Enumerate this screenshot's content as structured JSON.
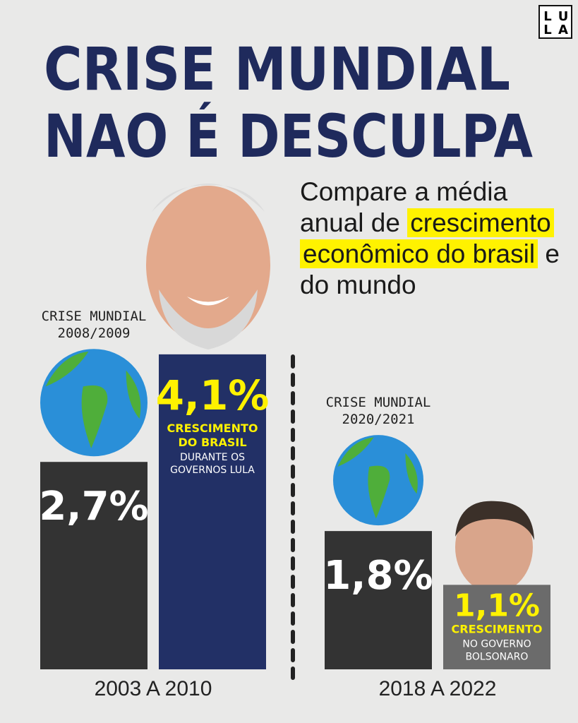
{
  "logo": [
    "L",
    "U",
    "L",
    "A"
  ],
  "chart_data": {
    "type": "bar",
    "title": [
      "CRISE MUNDIAL",
      "NAO É DESCULPA"
    ],
    "subtitle": {
      "before": "Compare a média anual de",
      "highlight": "crescimento econômico do brasil",
      "after": "e do mundo"
    },
    "categories": [
      "2003 A 2010",
      "2018 A 2022"
    ],
    "crisis_labels": [
      [
        "CRISE MUNDIAL",
        "2008/2009"
      ],
      [
        "CRISE MUNDIAL",
        "2020/2021"
      ]
    ],
    "ylim": [
      0,
      4.2
    ],
    "series": [
      {
        "color": "#333333",
        "values": [
          2.7,
          1.8
        ],
        "value_labels": [
          "2,7%",
          "1,8%"
        ]
      },
      {
        "colors": [
          "#223066",
          "#6b6b6b"
        ],
        "values": [
          4.1,
          1.1
        ],
        "value_labels": [
          "4,1%",
          "1,1%"
        ],
        "highlights": [
          [
            "CRESCIMENTO",
            "DO BRASIL"
          ],
          [
            "CRESCIMENTO"
          ]
        ],
        "captions": [
          [
            "DURANTE OS",
            "GOVERNOS LULA"
          ],
          [
            "NO GOVERNO",
            "BOLSONARO"
          ]
        ]
      }
    ]
  }
}
